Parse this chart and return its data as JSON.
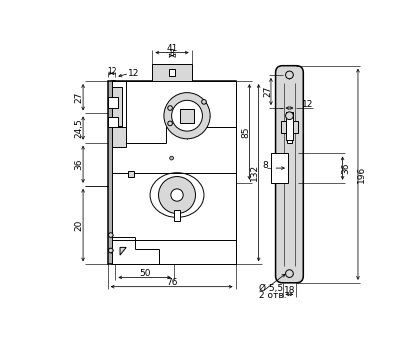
{
  "bg": "#ffffff",
  "lc": "#000000",
  "gray": "#b0b0b0",
  "lgray": "#d8d8d8",
  "figsize": [
    4.1,
    3.42
  ],
  "dpi": 100,
  "fs": 6.5
}
